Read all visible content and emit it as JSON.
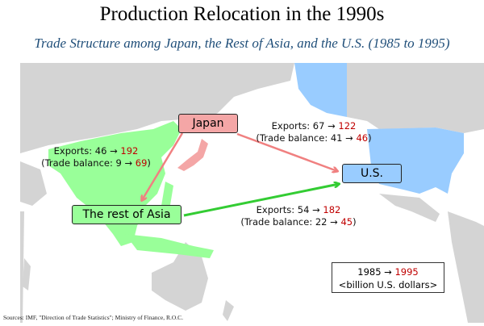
{
  "title": "Production Relocation in the 1990s",
  "subtitle": "Trade Structure among Japan, the Rest of Asia, and the U.S. (1985 to 1995)",
  "nodes": {
    "japan": {
      "label": "Japan",
      "color": "#f4a6a6"
    },
    "us": {
      "label": "U.S.",
      "color": "#99ccff"
    },
    "rest_of_asia": {
      "label": "The rest of Asia",
      "color": "#99ff99"
    }
  },
  "flows": {
    "japan_to_asia": {
      "exports_label": "Exports: 46 →",
      "exports_new": "192",
      "balance_label": "(Trade balance: 9 →",
      "balance_new": "69",
      "close": ")",
      "color": "#f08080"
    },
    "japan_to_us": {
      "exports_label": "Exports: 67 →",
      "exports_new": "122",
      "balance_label": "(Trade balance: 41 →",
      "balance_new": "46",
      "close": ")",
      "color": "#f08080"
    },
    "asia_to_us": {
      "exports_label": "Exports: 54 →",
      "exports_new": "182",
      "balance_label": "(Trade balance: 22 →",
      "balance_new": "45",
      "close": ")",
      "color": "#33cc33"
    }
  },
  "legend": {
    "from": "1985 →",
    "to": "1995",
    "unit": "<billion U.S. dollars>"
  },
  "source": "Sources: IMF, \"Direction of Trade Statistics\"; Ministry of Finance, R.O.C.",
  "colors": {
    "land": "#d4d4d4",
    "highlight_red": "#c00000"
  }
}
